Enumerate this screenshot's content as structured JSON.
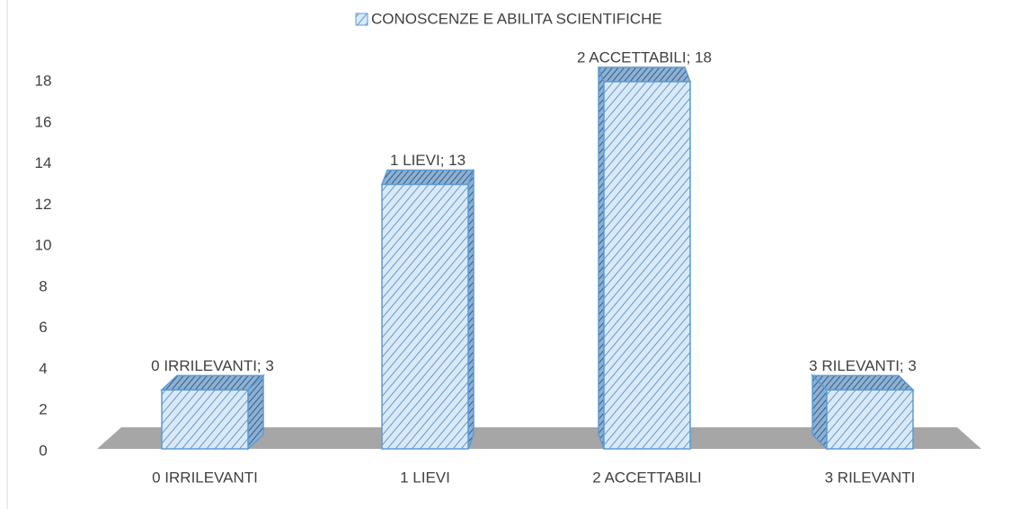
{
  "chart_data": {
    "type": "bar3d",
    "legend": "CONOSCENZE E ABILITA SCIENTIFICHE",
    "categories": [
      "0 IRRILEVANTI",
      "1 LIEVI",
      "2 ACCETTABILI",
      "3 RILEVANTI"
    ],
    "values": [
      3,
      13,
      18,
      3
    ],
    "value_labels": [
      "0 IRRILEVANTI; 3",
      "1 LIEVI; 13",
      "2 ACCETTABILI; 18",
      "3 RILEVANTI; 3"
    ],
    "color": "#5b9bd5",
    "ylim": [
      0,
      18
    ],
    "yticks": [
      0,
      2,
      4,
      6,
      8,
      10,
      12,
      14,
      16,
      18
    ],
    "grid": false
  }
}
